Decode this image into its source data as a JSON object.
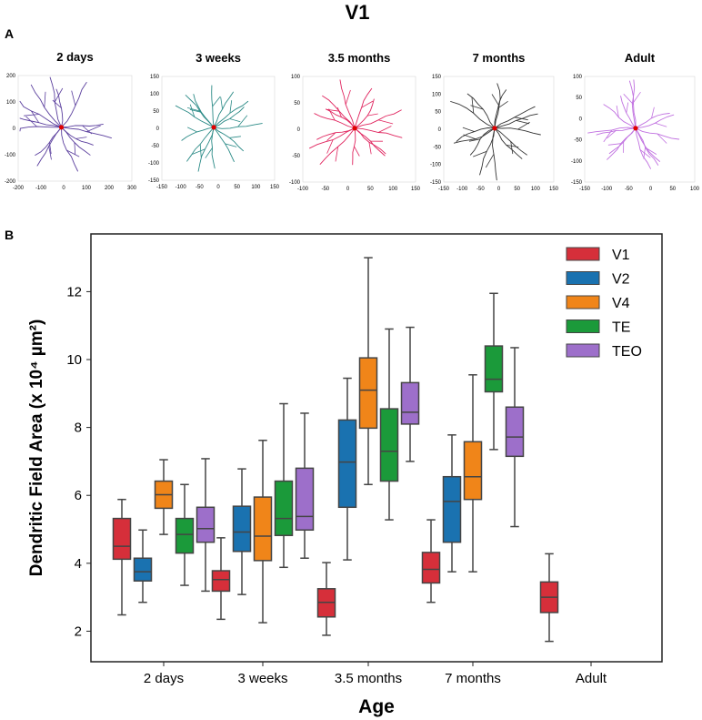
{
  "figure": {
    "title": "V1",
    "panel_a_label": "A",
    "panel_b_label": "B"
  },
  "tracings": [
    {
      "label": "2 days",
      "color": "#5b3f9e",
      "xticks": [
        "-200",
        "-100",
        "0",
        "100",
        "200",
        "300"
      ],
      "yticks": [
        "200",
        "100",
        "0",
        "-100",
        "-200"
      ]
    },
    {
      "label": "3 weeks",
      "color": "#2a8a86",
      "xticks": [
        "-150",
        "-100",
        "-50",
        "0",
        "50",
        "100",
        "150"
      ],
      "yticks": [
        "150",
        "100",
        "50",
        "0",
        "-50",
        "-100",
        "-150"
      ]
    },
    {
      "label": "3.5 months",
      "color": "#e0245e",
      "xticks": [
        "-100",
        "-50",
        "0",
        "50",
        "100",
        "150"
      ],
      "yticks": [
        "100",
        "50",
        "0",
        "-50",
        "-100"
      ]
    },
    {
      "label": "7 months",
      "color": "#333333",
      "xticks": [
        "-150",
        "-100",
        "-50",
        "0",
        "50",
        "100",
        "150"
      ],
      "yticks": [
        "150",
        "100",
        "50",
        "0",
        "-50",
        "-100",
        "-150"
      ]
    },
    {
      "label": "Adult",
      "color": "#c070e0",
      "xticks": [
        "-150",
        "-100",
        "-50",
        "0",
        "50",
        "100"
      ],
      "yticks": [
        "100",
        "50",
        "0",
        "-50",
        "-100",
        "-150"
      ]
    }
  ],
  "chart_data": {
    "type": "box",
    "title": "",
    "xlabel": "Age",
    "ylabel": "Dendritic Field Area (x 10⁴ µm²)",
    "ylim": [
      1.1,
      13.7
    ],
    "yticks": [
      2,
      4,
      6,
      8,
      10,
      12
    ],
    "categories": [
      "2 days",
      "3 weeks",
      "3.5 months",
      "7 months",
      "Adult"
    ],
    "legend_position": "top-right",
    "series": [
      {
        "name": "V1",
        "color": "#d62f3a",
        "boxes": [
          {
            "category": "2 days",
            "min": 2.48,
            "q1": 4.12,
            "median": 4.5,
            "q3": 5.32,
            "max": 5.88
          },
          {
            "category": "3 weeks",
            "min": 2.35,
            "q1": 3.18,
            "median": 3.52,
            "q3": 3.78,
            "max": 4.75
          },
          {
            "category": "3.5 months",
            "min": 1.88,
            "q1": 2.42,
            "median": 2.85,
            "q3": 3.25,
            "max": 4.02
          },
          {
            "category": "7 months",
            "min": 2.85,
            "q1": 3.42,
            "median": 3.82,
            "q3": 4.32,
            "max": 5.28
          },
          {
            "category": "Adult",
            "min": 1.7,
            "q1": 2.55,
            "median": 3.0,
            "q3": 3.45,
            "max": 4.28
          }
        ]
      },
      {
        "name": "V2",
        "color": "#1a72b0",
        "boxes": [
          {
            "category": "2 days",
            "min": 2.85,
            "q1": 3.48,
            "median": 3.75,
            "q3": 4.15,
            "max": 4.98
          },
          {
            "category": "3 weeks",
            "min": 3.08,
            "q1": 4.35,
            "median": 4.92,
            "q3": 5.68,
            "max": 6.78
          },
          {
            "category": "3.5 months",
            "min": 4.1,
            "q1": 5.65,
            "median": 6.98,
            "q3": 8.22,
            "max": 9.45
          },
          {
            "category": "7 months",
            "min": 3.75,
            "q1": 4.62,
            "median": 5.82,
            "q3": 6.55,
            "max": 7.78
          }
        ]
      },
      {
        "name": "V4",
        "color": "#f08519",
        "boxes": [
          {
            "category": "2 days",
            "min": 4.85,
            "q1": 5.62,
            "median": 6.02,
            "q3": 6.42,
            "max": 7.05
          },
          {
            "category": "3 weeks",
            "min": 2.25,
            "q1": 4.08,
            "median": 4.8,
            "q3": 5.95,
            "max": 7.62
          },
          {
            "category": "3.5 months",
            "min": 6.32,
            "q1": 7.98,
            "median": 9.1,
            "q3": 10.05,
            "max": 13.0
          },
          {
            "category": "7 months",
            "min": 3.75,
            "q1": 5.88,
            "median": 6.55,
            "q3": 7.58,
            "max": 9.55
          }
        ]
      },
      {
        "name": "TE",
        "color": "#1b9a3a",
        "boxes": [
          {
            "category": "2 days",
            "min": 3.35,
            "q1": 4.3,
            "median": 4.85,
            "q3": 5.32,
            "max": 6.32
          },
          {
            "category": "3 weeks",
            "min": 3.88,
            "q1": 4.82,
            "median": 5.32,
            "q3": 6.42,
            "max": 8.7
          },
          {
            "category": "3.5 months",
            "min": 5.28,
            "q1": 6.42,
            "median": 7.3,
            "q3": 8.55,
            "max": 10.9
          },
          {
            "category": "7 months",
            "min": 7.35,
            "q1": 9.05,
            "median": 9.42,
            "q3": 10.4,
            "max": 11.95
          }
        ]
      },
      {
        "name": "TEO",
        "color": "#9d6fca",
        "boxes": [
          {
            "category": "2 days",
            "min": 3.18,
            "q1": 4.62,
            "median": 5.02,
            "q3": 5.65,
            "max": 7.08
          },
          {
            "category": "3 weeks",
            "min": 4.15,
            "q1": 4.98,
            "median": 5.38,
            "q3": 6.8,
            "max": 8.42
          },
          {
            "category": "3.5 months",
            "min": 7.0,
            "q1": 8.1,
            "median": 8.45,
            "q3": 9.32,
            "max": 10.95
          },
          {
            "category": "7 months",
            "min": 5.08,
            "q1": 7.15,
            "median": 7.72,
            "q3": 8.6,
            "max": 10.35
          }
        ]
      }
    ]
  }
}
